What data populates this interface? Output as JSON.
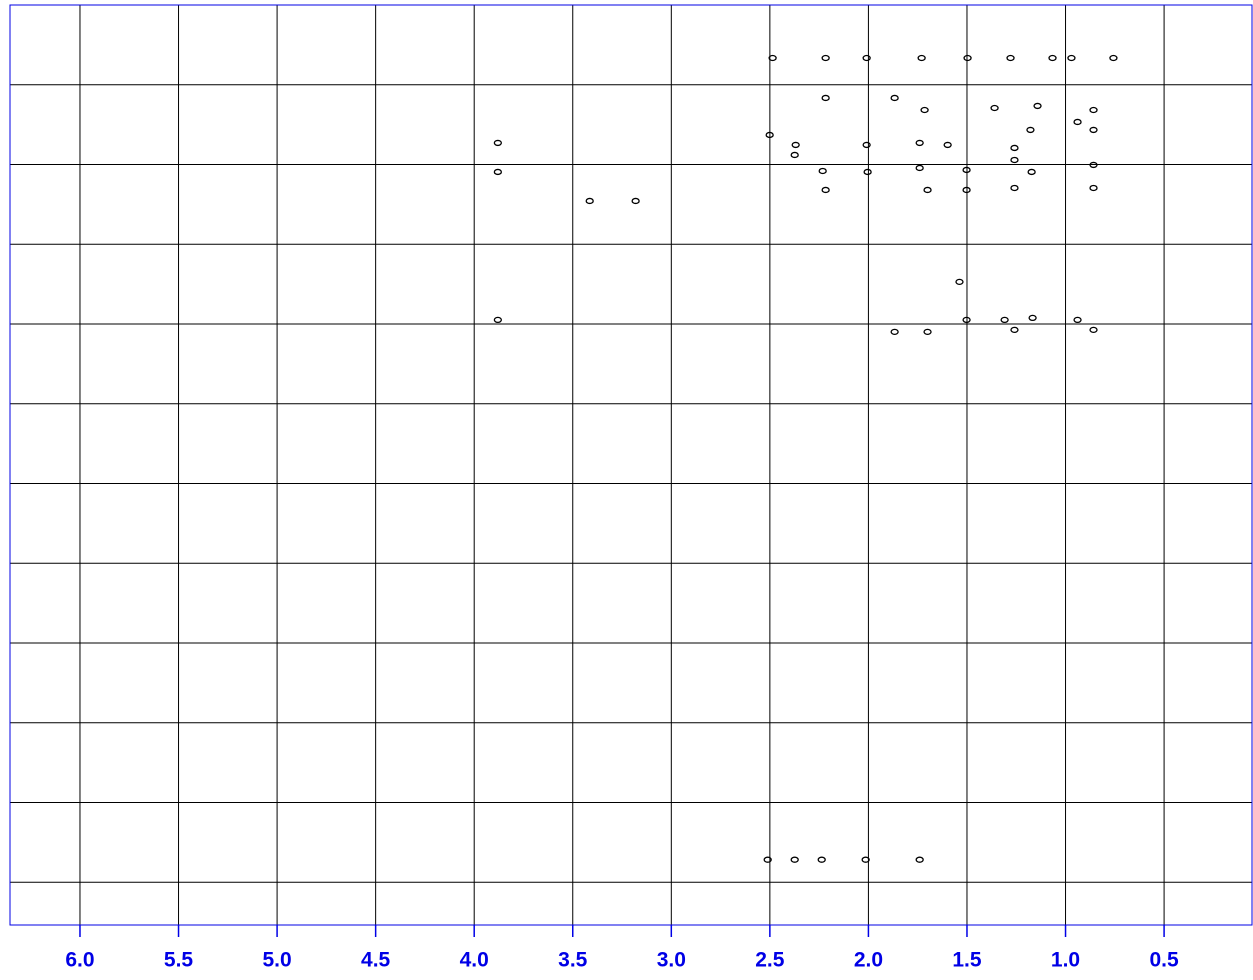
{
  "chart_data": {
    "type": "scatter",
    "xlim": [
      6.355,
      0.054
    ],
    "xticks": [
      {
        "value": 6.0,
        "label": "6.0"
      },
      {
        "value": 5.5,
        "label": "5.5"
      },
      {
        "value": 5.0,
        "label": "5.0"
      },
      {
        "value": 4.5,
        "label": "4.5"
      },
      {
        "value": 4.0,
        "label": "4.0"
      },
      {
        "value": 3.5,
        "label": "3.5"
      },
      {
        "value": 3.0,
        "label": "3.0"
      },
      {
        "value": 2.5,
        "label": "2.5"
      },
      {
        "value": 2.0,
        "label": "2.0"
      },
      {
        "value": 1.5,
        "label": "1.5"
      },
      {
        "value": 1.0,
        "label": "1.0"
      },
      {
        "value": 0.5,
        "label": "0.5"
      }
    ],
    "ylim": [
      11.54,
      0
    ],
    "grid": true,
    "color": "#000000",
    "axis_color": "#0000e6",
    "x": [
      2.486,
      2.217,
      2.009,
      1.73,
      1.497,
      1.279,
      1.066,
      0.97,
      0.757,
      2.217,
      1.867,
      1.715,
      1.36,
      1.142,
      0.858,
      0.858,
      1.178,
      0.939,
      3.88,
      2.501,
      2.369,
      2.374,
      2.009,
      1.74,
      1.598,
      1.259,
      0.858,
      1.259,
      1.172,
      1.74,
      1.502,
      2.232,
      2.004,
      0.858,
      1.259,
      1.502,
      1.7,
      2.217,
      3.88,
      3.414,
      3.181,
      1.538,
      3.88,
      1.502,
      1.309,
      1.167,
      1.259,
      0.858,
      1.867,
      1.7,
      0.939,
      2.511,
      2.374,
      2.237,
      2.014,
      1.74
    ],
    "values": [
      0.665,
      0.665,
      0.665,
      0.665,
      0.665,
      0.665,
      0.665,
      0.665,
      0.665,
      1.166,
      1.166,
      1.317,
      1.292,
      1.266,
      1.317,
      1.567,
      1.567,
      1.467,
      1.73,
      1.63,
      1.755,
      1.881,
      1.755,
      1.73,
      1.755,
      1.793,
      2.006,
      1.944,
      2.094,
      2.044,
      2.069,
      2.082,
      2.094,
      2.295,
      2.295,
      2.32,
      2.32,
      2.32,
      2.094,
      2.458,
      2.458,
      3.473,
      3.95,
      3.95,
      3.95,
      3.925,
      4.075,
      4.075,
      4.1,
      4.1,
      3.95,
      10.721,
      10.721,
      10.721,
      10.721,
      10.721
    ]
  }
}
